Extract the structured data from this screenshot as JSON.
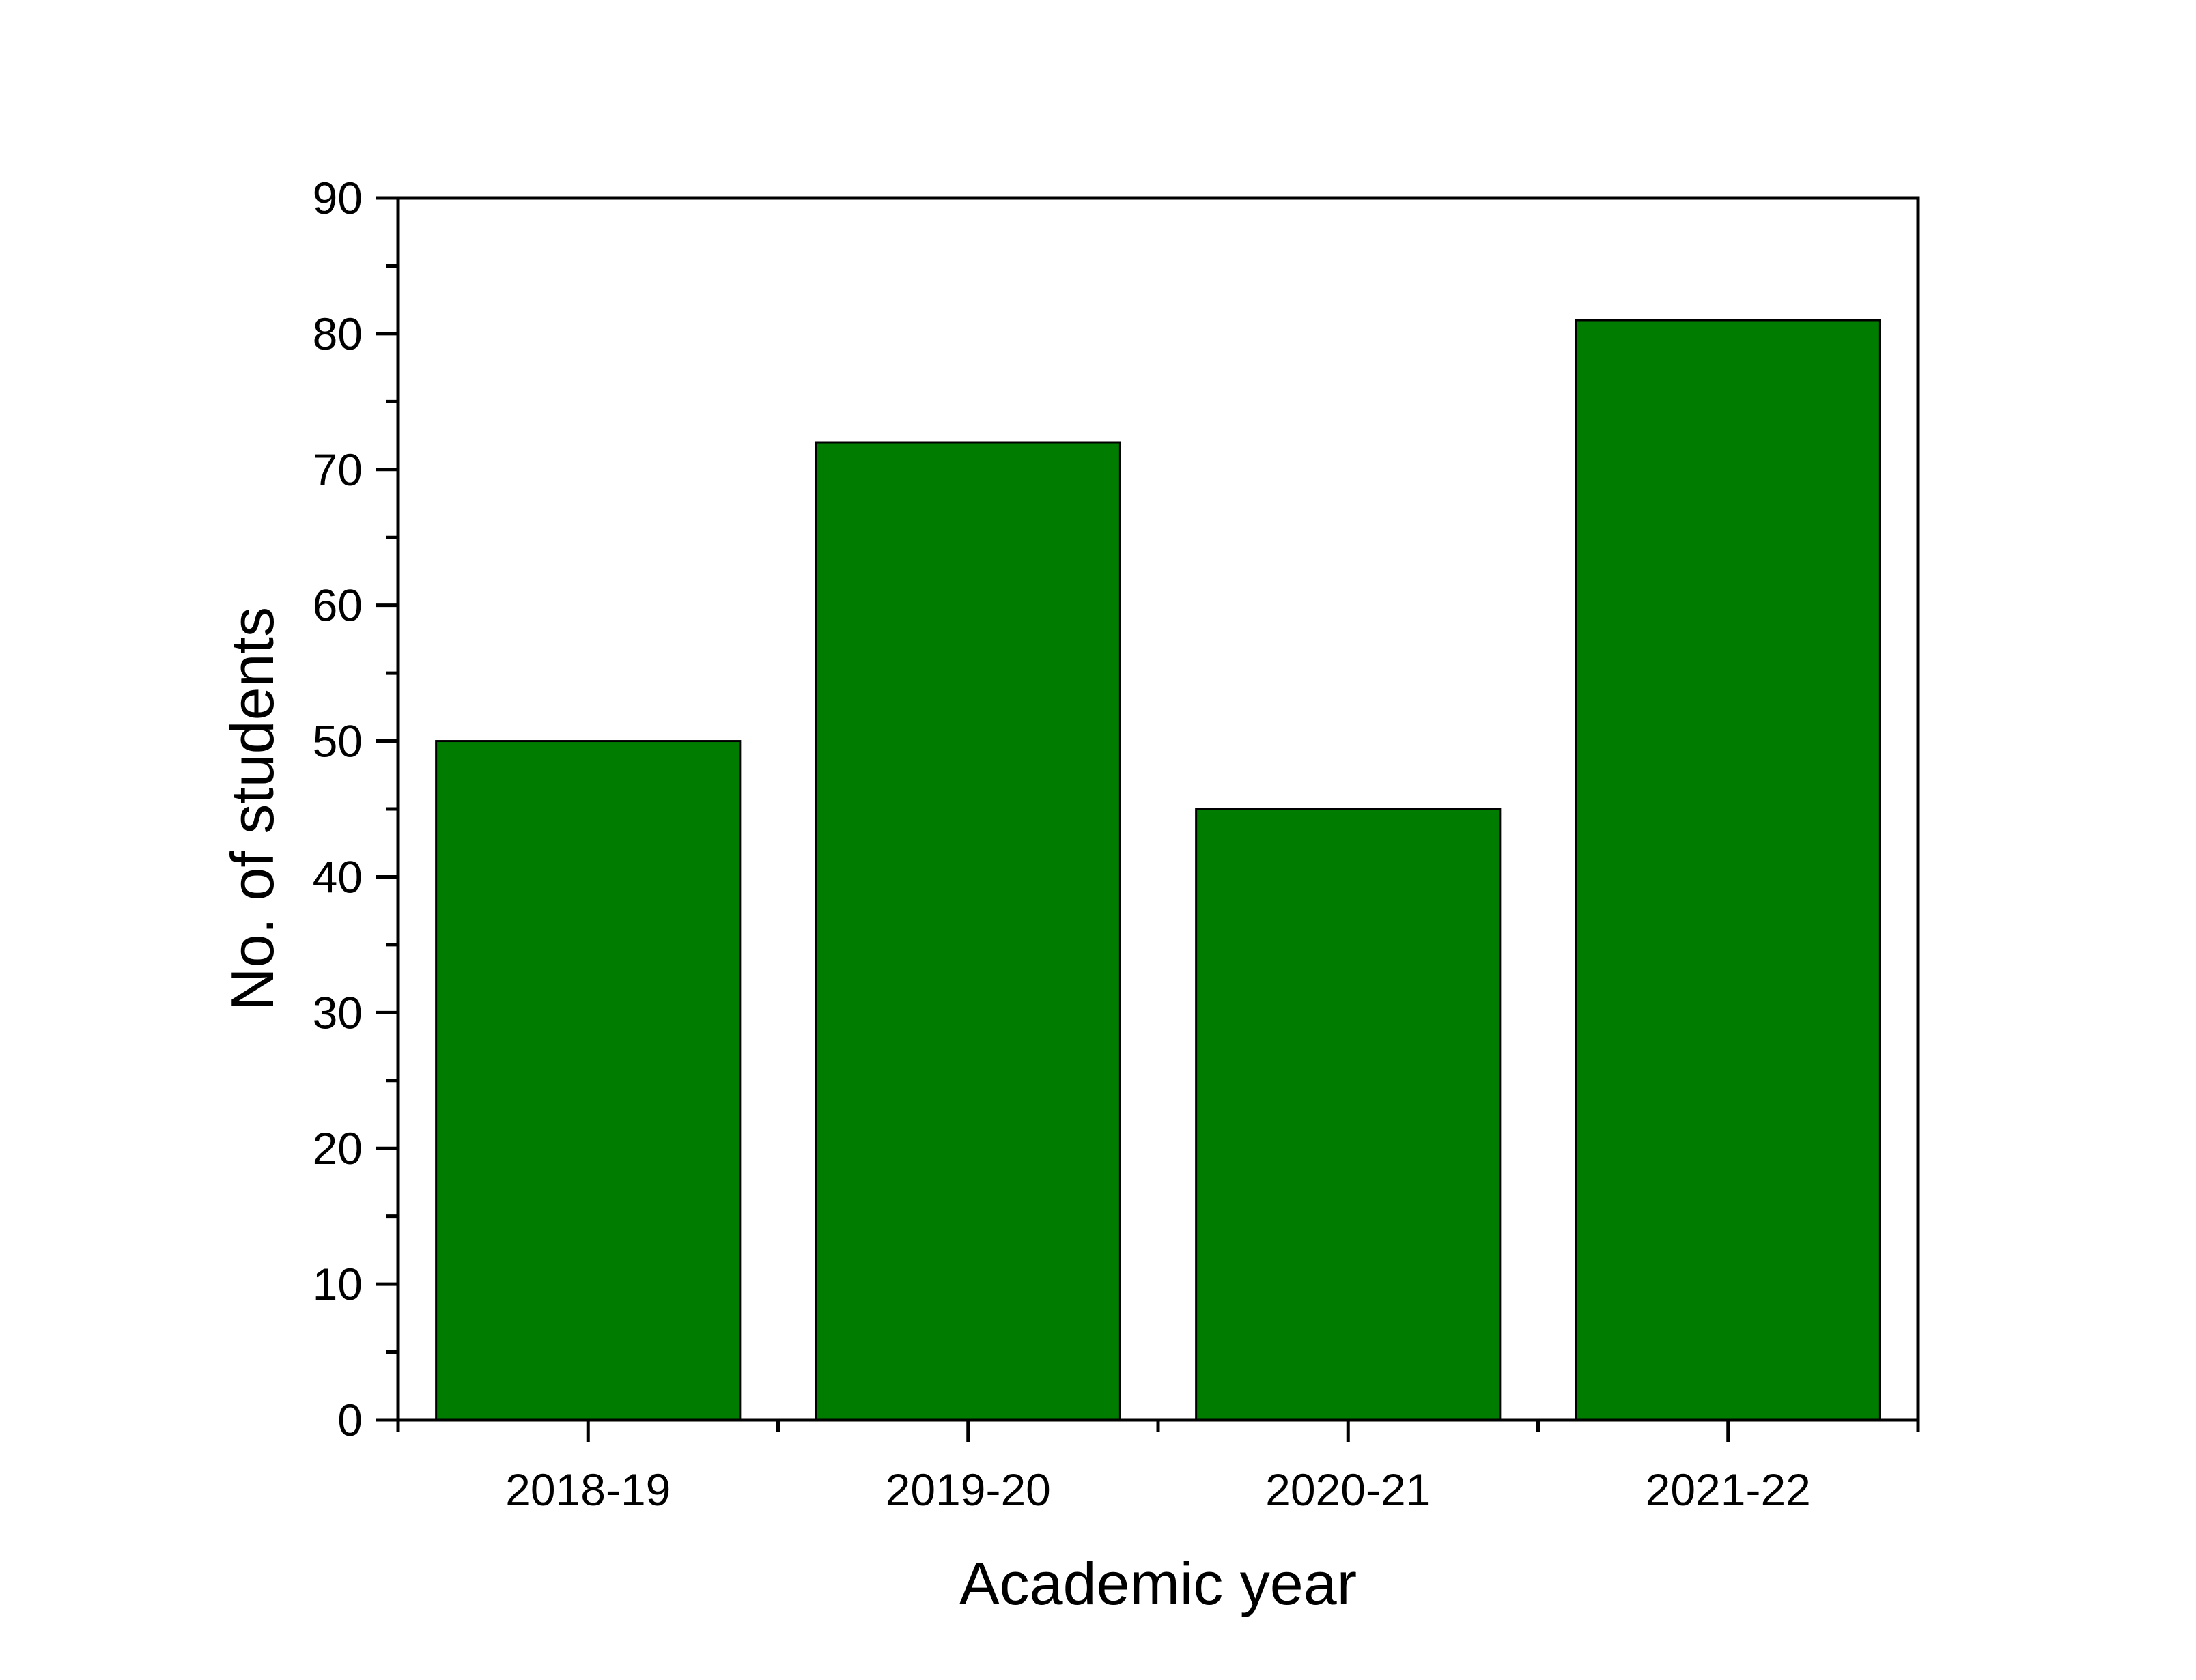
{
  "chart_data": {
    "type": "bar",
    "categories": [
      "2018-19",
      "2019-20",
      "2020-21",
      "2021-22"
    ],
    "values": [
      50,
      72,
      45,
      81
    ],
    "title": "",
    "xlabel": "Academic year",
    "ylabel": "No. of students",
    "ylim": [
      0,
      90
    ],
    "yticks": [
      0,
      10,
      20,
      30,
      40,
      50,
      60,
      70,
      80,
      90
    ],
    "bar_color": "#007c00",
    "grid": false,
    "legend": "none"
  }
}
